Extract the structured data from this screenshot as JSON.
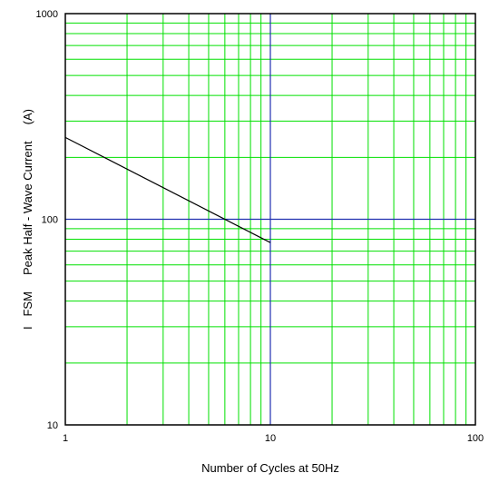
{
  "chart_data": {
    "type": "line",
    "x_scale": "log",
    "y_scale": "log",
    "xlim": [
      1,
      100
    ],
    "ylim": [
      10,
      1000
    ],
    "x_ticks": [
      "1",
      "10",
      "100"
    ],
    "y_ticks": [
      "10",
      "100",
      "1000"
    ],
    "xlabel": "Number of Cycles at 50Hz",
    "ylabel": "I   FSM     Peak Half - Wave Current     (A)",
    "grid": true,
    "colors": {
      "minor_grid": "#00e000",
      "major_grid": "#2030b0",
      "series": "#000000"
    },
    "series": [
      {
        "x": [
          1,
          10
        ],
        "y": [
          250,
          77
        ]
      }
    ]
  }
}
